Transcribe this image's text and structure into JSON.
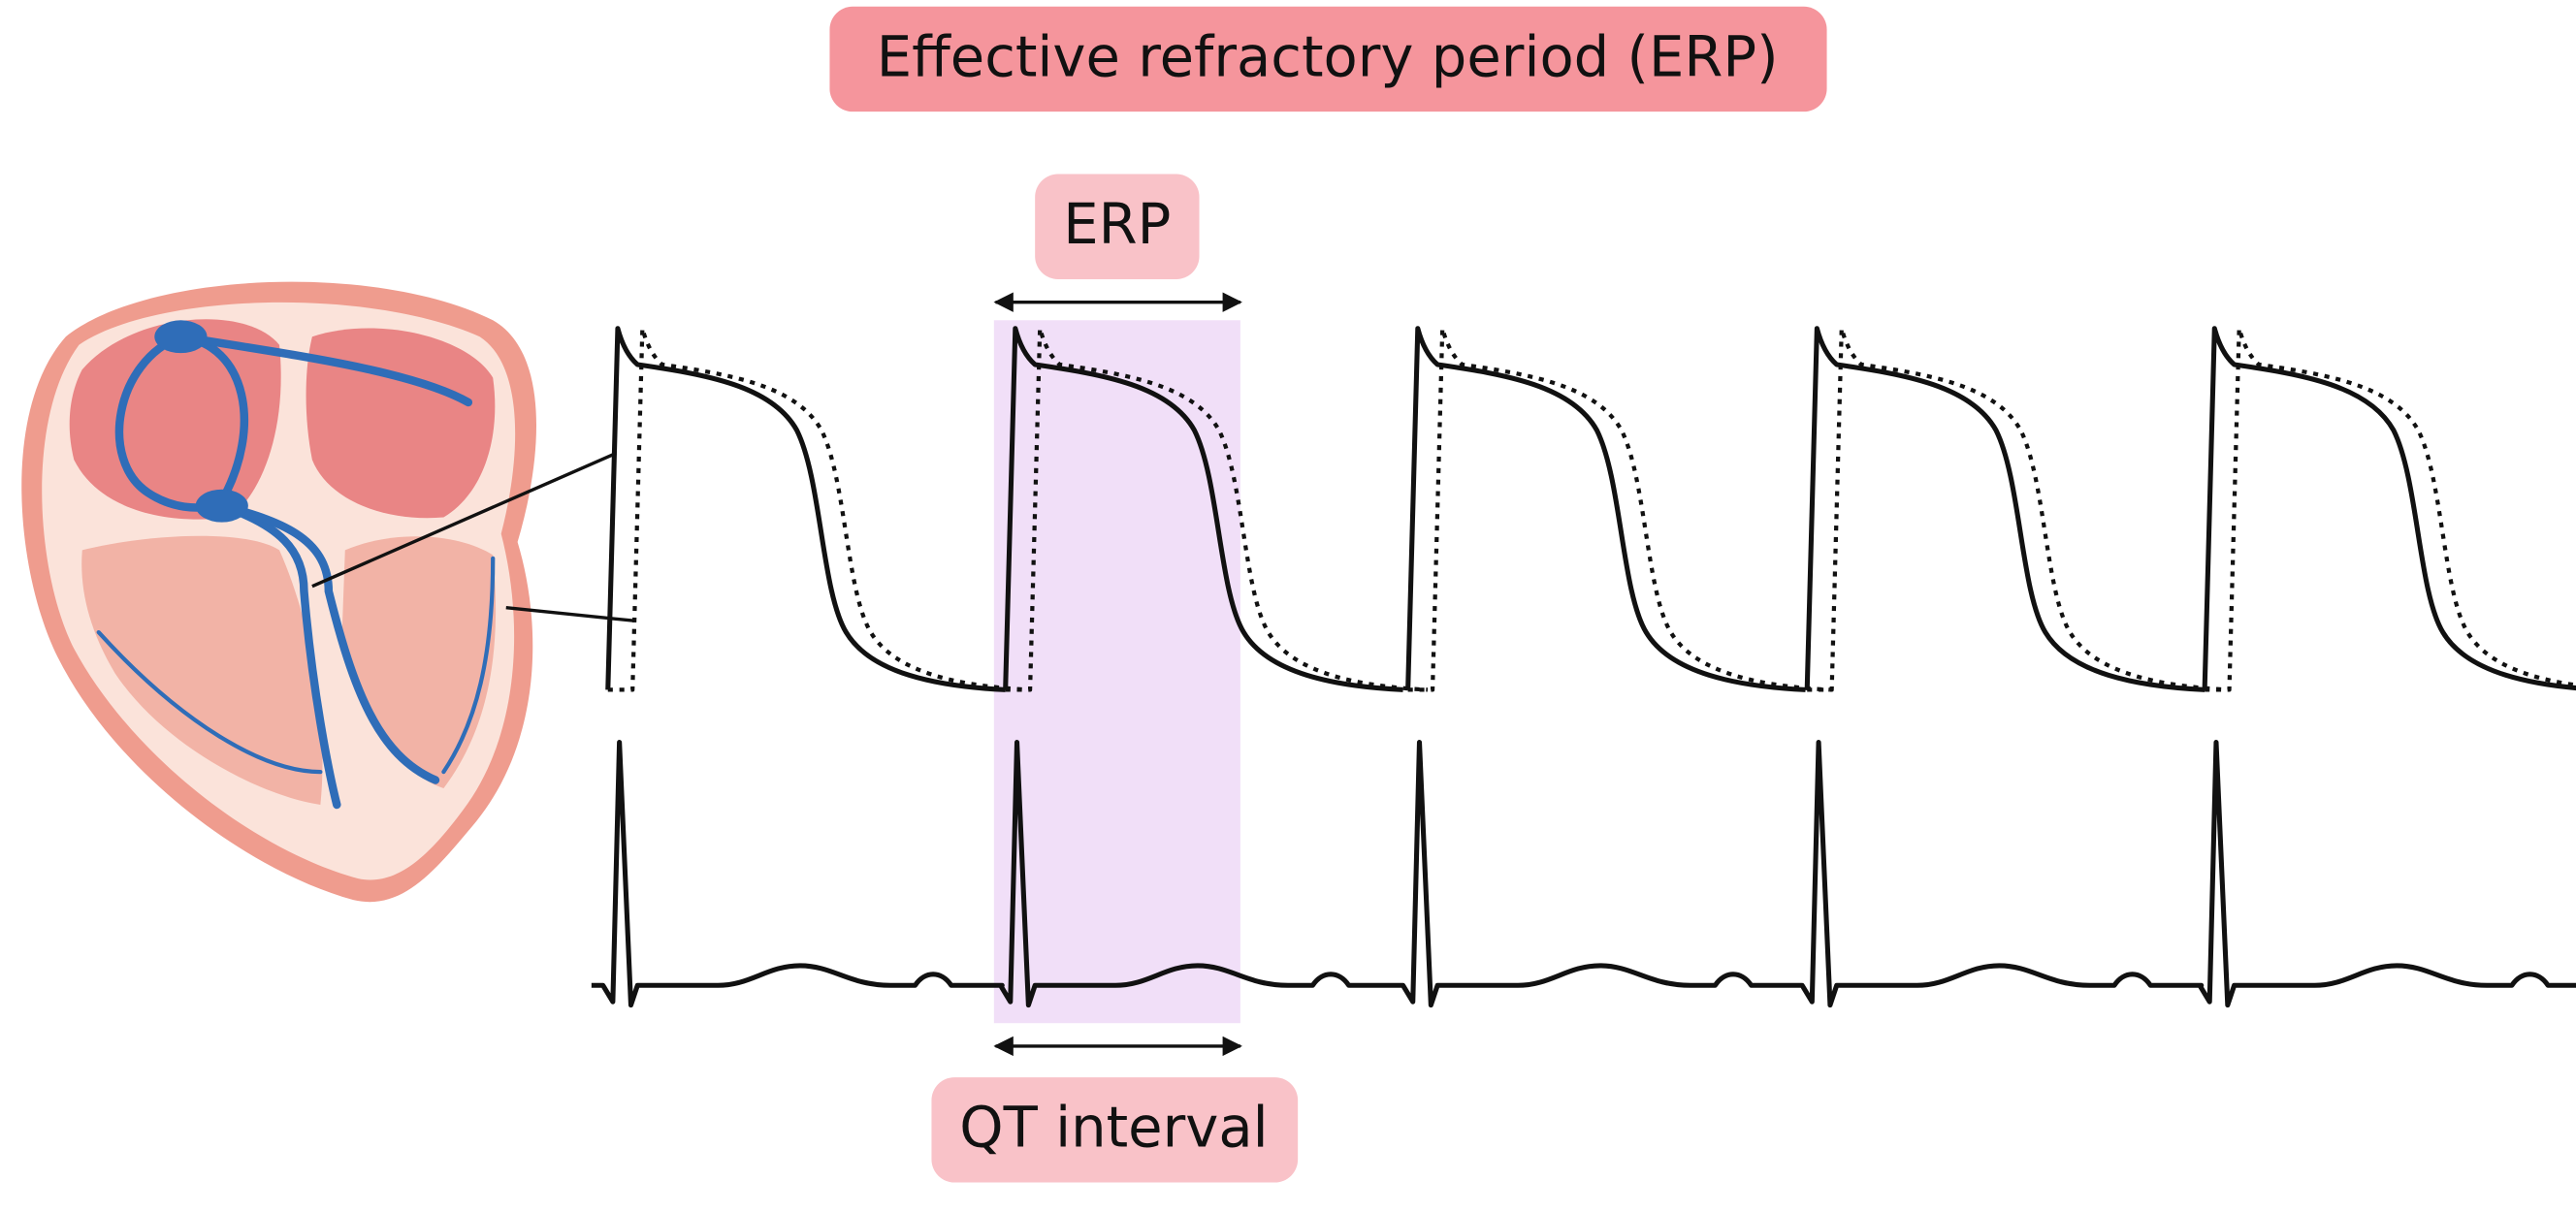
{
  "title": "Effective refractory period (ERP)",
  "labels": {
    "erp": "ERP",
    "qt_interval": "QT interval"
  }
}
